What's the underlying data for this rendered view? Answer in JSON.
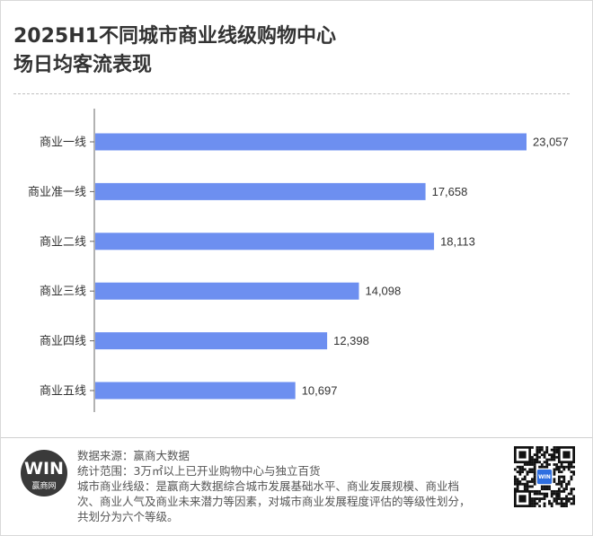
{
  "title": {
    "line1": "2025H1不同城市商业线级购物中心",
    "line2": "场日均客流表现"
  },
  "chart_data": {
    "type": "bar",
    "orientation": "horizontal",
    "categories": [
      "商业一线",
      "商业准一线",
      "商业二线",
      "商业三线",
      "商业四线",
      "商业五线"
    ],
    "values": [
      23057,
      17658,
      18113,
      14098,
      12398,
      10697
    ],
    "value_labels": [
      "23,057",
      "17,658",
      "18,113",
      "14,098",
      "12,398",
      "10,697"
    ],
    "title": "2025H1不同城市商业线级购物中心场日均客流表现",
    "xlabel": "",
    "ylabel": "",
    "xlim": [
      0,
      23057
    ],
    "grid": false,
    "legend": "none",
    "bar_color": "#6d8ff0"
  },
  "footer": {
    "source": "数据来源：赢商大数据",
    "scope": "统计范围：3万㎡以上已开业购物中心与独立百货",
    "definition": "城市商业线级：是赢商大数据综合城市发展基础水平、商业发展规模、商业档次、商业人气及商业未来潜力等因素，对城市商业发展程度评估的等级性划分，共划分为六个等级。"
  },
  "logo": {
    "mark": "WIN",
    "name": "赢商网"
  },
  "qr": {
    "center_label": "WIN"
  }
}
